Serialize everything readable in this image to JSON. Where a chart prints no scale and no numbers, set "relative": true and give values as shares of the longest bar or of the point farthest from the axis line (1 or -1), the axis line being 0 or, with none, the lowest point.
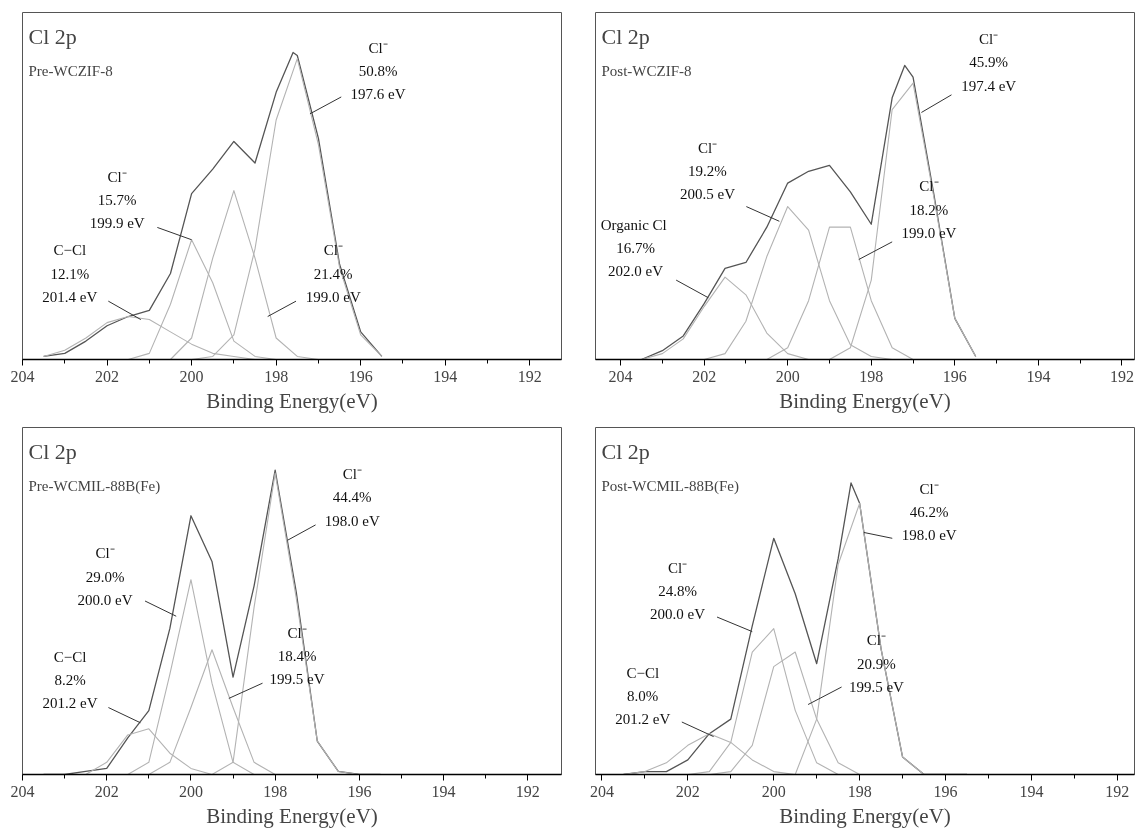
{
  "chart_data": [
    {
      "type": "line",
      "title": "Cl 2p",
      "subtitle": "Pre-WCZIF-8",
      "xlabel": "Binding Energy(eV)",
      "relative": true,
      "tick_labels": "x",
      "xlim": [
        204,
        191.25
      ],
      "xticks": [
        204,
        202,
        200,
        198,
        196,
        194,
        192
      ],
      "x": [
        203.5,
        203,
        202.5,
        202,
        201.5,
        201,
        200.5,
        200,
        199.5,
        199,
        198.5,
        198,
        197.5,
        197,
        196.5,
        196,
        195.5
      ],
      "series": [
        {
          "color": "#555555",
          "x": [
            203.5,
            203,
            202.5,
            202,
            201.5,
            201,
            200.5,
            200,
            199.5,
            199,
            198.5,
            198,
            197.6,
            197.5,
            197,
            196.5,
            196,
            195.5
          ],
          "values": [
            0.01,
            0.02,
            0.06,
            0.11,
            0.14,
            0.16,
            0.28,
            0.54,
            0.62,
            0.71,
            0.64,
            0.87,
            1.0,
            0.99,
            0.72,
            0.31,
            0.09,
            0.01
          ]
        },
        {
          "color": "#b3b3b3",
          "values": [
            0.01,
            0.03,
            0.07,
            0.12,
            0.14,
            0.13,
            0.09,
            0.05,
            0.02,
            0.01,
            0,
            0,
            0,
            0,
            0,
            0,
            0
          ]
        },
        {
          "color": "#b3b3b3",
          "values": [
            0,
            0,
            0,
            0,
            0,
            0.02,
            0.18,
            0.39,
            0.25,
            0.06,
            0.01,
            0,
            0,
            0,
            0,
            0,
            0
          ]
        },
        {
          "color": "#b3b3b3",
          "values": [
            0,
            0,
            0,
            0,
            0,
            0,
            0,
            0.07,
            0.33,
            0.55,
            0.33,
            0.07,
            0.01,
            0,
            0,
            0,
            0
          ]
        },
        {
          "color": "#b3b3b3",
          "values": [
            0,
            0,
            0,
            0,
            0,
            0,
            0,
            0,
            0.01,
            0.08,
            0.36,
            0.78,
            0.98,
            0.7,
            0.3,
            0.08,
            0.01
          ]
        }
      ],
      "annotations": [
        {
          "text": "C−Cl\n12.1%\n201.4 eV",
          "x": 201.2,
          "y": 0.13
        },
        {
          "text": "Cl⁻\n15.7%\n199.9 eV",
          "x": 200.0,
          "y": 0.39
        },
        {
          "text": "Cl⁻\n21.4%\n199.0 eV",
          "x": 198.2,
          "y": 0.14
        },
        {
          "text": "Cl⁻\n50.8%\n197.6 eV",
          "x": 197.2,
          "y": 0.8
        }
      ]
    },
    {
      "type": "line",
      "title": "Cl 2p",
      "subtitle": "Post-WCZIF-8",
      "xlabel": "Binding Energy(eV)",
      "relative": true,
      "tick_labels": "x",
      "xlim": [
        204.6,
        191.7
      ],
      "xticks": [
        204,
        202,
        200,
        198,
        196,
        194,
        192
      ],
      "x": [
        203.5,
        203,
        202.5,
        202,
        201.5,
        201,
        200.5,
        200,
        199.5,
        199,
        198.5,
        198,
        197.5,
        197,
        196.5,
        196,
        195.5
      ],
      "series": [
        {
          "color": "#555555",
          "x": [
            203.5,
            203,
            202.5,
            202,
            201.5,
            201,
            200.5,
            200,
            199.5,
            199,
            198.5,
            198,
            197.5,
            197.2,
            197,
            196.5,
            196,
            195.5
          ],
          "values": [
            0,
            0.03,
            0.08,
            0.19,
            0.31,
            0.33,
            0.45,
            0.6,
            0.64,
            0.66,
            0.57,
            0.46,
            0.89,
            1.0,
            0.96,
            0.56,
            0.14,
            0.01
          ]
        },
        {
          "color": "#b3b3b3",
          "values": [
            0,
            0.02,
            0.07,
            0.18,
            0.28,
            0.22,
            0.09,
            0.02,
            0,
            0,
            0,
            0,
            0,
            0,
            0,
            0,
            0
          ]
        },
        {
          "color": "#b3b3b3",
          "values": [
            0,
            0,
            0,
            0,
            0.02,
            0.13,
            0.35,
            0.52,
            0.44,
            0.2,
            0.05,
            0.01,
            0,
            0,
            0,
            0,
            0
          ]
        },
        {
          "color": "#b3b3b3",
          "values": [
            0,
            0,
            0,
            0,
            0,
            0,
            0,
            0.04,
            0.2,
            0.45,
            0.45,
            0.2,
            0.04,
            0,
            0,
            0,
            0
          ]
        },
        {
          "color": "#b3b3b3",
          "values": [
            0,
            0,
            0,
            0,
            0,
            0,
            0,
            0,
            0,
            0,
            0.04,
            0.27,
            0.85,
            0.94,
            0.55,
            0.14,
            0.01
          ]
        }
      ],
      "annotations": [
        {
          "text": "Organic  Cl\n16.7%\n202.0 eV",
          "x": 201.9,
          "y": 0.21
        },
        {
          "text": "Cl⁻\n19.2%\n200.5 eV",
          "x": 200.2,
          "y": 0.47
        },
        {
          "text": "Cl⁻\n18.2%\n199.0 eV",
          "x": 198.3,
          "y": 0.34
        },
        {
          "text": "Cl⁻\n45.9%\n197.4 eV",
          "x": 196.8,
          "y": 0.84
        }
      ]
    },
    {
      "type": "line",
      "title": "Cl 2p",
      "subtitle": "Pre-WCMIL-88B(Fe)",
      "xlabel": "Binding Energy(eV)",
      "relative": true,
      "tick_labels": "x",
      "xlim": [
        204,
        191.2
      ],
      "xticks": [
        204,
        202,
        200,
        198,
        196,
        194,
        192
      ],
      "x": [
        203.5,
        203,
        202.5,
        202,
        201.5,
        201,
        200.5,
        200,
        199.5,
        199,
        198.5,
        198,
        197.5,
        197,
        196.5,
        196,
        195.5
      ],
      "series": [
        {
          "color": "#555555",
          "values": [
            0,
            0,
            0.01,
            0.02,
            0.12,
            0.21,
            0.48,
            0.85,
            0.7,
            0.32,
            0.62,
            1.0,
            0.6,
            0.11,
            0.01,
            0,
            0
          ]
        },
        {
          "color": "#b3b3b3",
          "values": [
            0,
            0,
            0,
            0.04,
            0.13,
            0.15,
            0.07,
            0.02,
            0,
            0,
            0,
            0,
            0,
            0,
            0,
            0,
            0
          ]
        },
        {
          "color": "#b3b3b3",
          "values": [
            0,
            0,
            0,
            0,
            0,
            0.04,
            0.33,
            0.64,
            0.3,
            0.04,
            0,
            0,
            0,
            0,
            0,
            0,
            0
          ]
        },
        {
          "color": "#b3b3b3",
          "values": [
            0,
            0,
            0,
            0,
            0,
            0,
            0.04,
            0.22,
            0.41,
            0.22,
            0.04,
            0,
            0,
            0,
            0,
            0,
            0
          ]
        },
        {
          "color": "#b3b3b3",
          "values": [
            0,
            0,
            0,
            0,
            0,
            0,
            0,
            0,
            0,
            0.04,
            0.55,
            0.99,
            0.58,
            0.11,
            0.01,
            0,
            0
          ]
        }
      ],
      "annotations": [
        {
          "text": "C−Cl\n8.2%\n201.2 eV",
          "x": 201.2,
          "y": 0.17
        },
        {
          "text": "Cl⁻\n29.0%\n200.0 eV",
          "x": 200.35,
          "y": 0.52
        },
        {
          "text": "Cl⁻\n18.4%\n199.5 eV",
          "x": 199.1,
          "y": 0.25
        },
        {
          "text": "Cl⁻\n44.4%\n198.0 eV",
          "x": 197.7,
          "y": 0.77
        }
      ]
    },
    {
      "type": "line",
      "title": "Cl 2p",
      "subtitle": "Post-WCMIL-88B(Fe)",
      "xlabel": "Binding Energy(eV)",
      "relative": true,
      "tick_labels": "x",
      "xlim": [
        204.15,
        191.6
      ],
      "xticks": [
        204,
        202,
        200,
        198,
        196,
        194,
        192
      ],
      "x": [
        203.5,
        203,
        202.5,
        202,
        201.5,
        201,
        200.5,
        200,
        199.5,
        199,
        198.5,
        198,
        197.5,
        197,
        196.5,
        196,
        195.5
      ],
      "series": [
        {
          "color": "#555555",
          "x": [
            203.5,
            203,
            202.5,
            202,
            201.5,
            201,
            200.5,
            200,
            199.5,
            199,
            198.5,
            198.2,
            198,
            197.5,
            197,
            196.5,
            196,
            195.5
          ],
          "values": [
            0,
            0.01,
            0.01,
            0.05,
            0.14,
            0.19,
            0.51,
            0.81,
            0.62,
            0.38,
            0.74,
            1.0,
            0.93,
            0.43,
            0.06,
            0,
            0,
            0
          ]
        },
        {
          "color": "#b3b3b3",
          "values": [
            0,
            0.01,
            0.04,
            0.1,
            0.14,
            0.11,
            0.05,
            0.01,
            0,
            0,
            0,
            0,
            0,
            0,
            0,
            0,
            0
          ]
        },
        {
          "color": "#b3b3b3",
          "values": [
            0,
            0,
            0,
            0,
            0.01,
            0.11,
            0.42,
            0.5,
            0.22,
            0.04,
            0,
            0,
            0,
            0,
            0,
            0,
            0
          ]
        },
        {
          "color": "#b3b3b3",
          "values": [
            0,
            0,
            0,
            0,
            0,
            0.01,
            0.1,
            0.37,
            0.42,
            0.19,
            0.04,
            0,
            0,
            0,
            0,
            0,
            0
          ]
        },
        {
          "color": "#b3b3b3",
          "values": [
            0,
            0,
            0,
            0,
            0,
            0,
            0,
            0,
            0,
            0.19,
            0.72,
            0.93,
            0.43,
            0.06,
            0,
            0,
            0
          ]
        }
      ],
      "annotations": [
        {
          "text": "C−Cl\n8.0%\n201.2 eV",
          "x": 201.4,
          "y": 0.13
        },
        {
          "text": "Cl⁻\n24.8%\n200.0 eV",
          "x": 200.5,
          "y": 0.49
        },
        {
          "text": "Cl⁻\n20.9%\n199.5 eV",
          "x": 199.2,
          "y": 0.24
        },
        {
          "text": "Cl⁻\n46.2%\n198.0 eV",
          "x": 197.9,
          "y": 0.83
        }
      ]
    }
  ]
}
